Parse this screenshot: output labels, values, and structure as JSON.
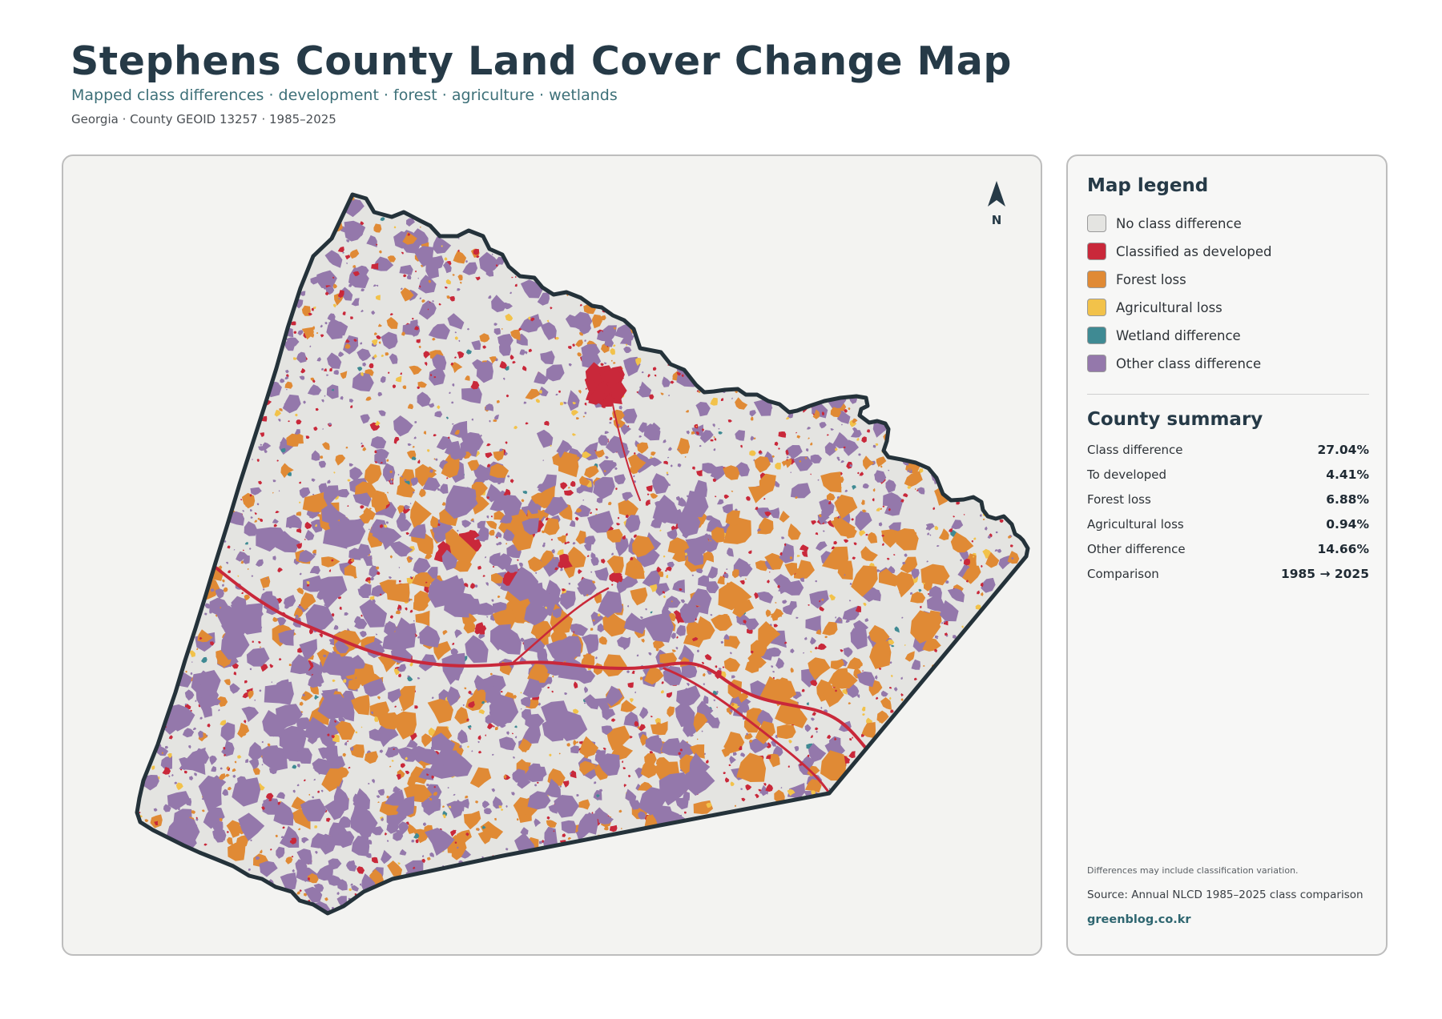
{
  "header": {
    "title": "Stephens County Land Cover Change Map",
    "subtitle": "Mapped class differences · development · forest · agriculture · wetlands",
    "meta": "Georgia · County GEOID 13257 · 1985–2025"
  },
  "map": {
    "north_label": "N",
    "boundary_color": "#24323a",
    "base_color": "#e4e4e1"
  },
  "legend": {
    "title": "Map legend",
    "items": [
      {
        "label": "No class difference",
        "color": "#e4e4e1"
      },
      {
        "label": "Classified as developed",
        "color": "#c9283a"
      },
      {
        "label": "Forest loss",
        "color": "#e08a35"
      },
      {
        "label": "Agricultural loss",
        "color": "#f2c24a"
      },
      {
        "label": "Wetland difference",
        "color": "#3f8a93"
      },
      {
        "label": "Other class difference",
        "color": "#9478ab"
      }
    ]
  },
  "summary": {
    "title": "County summary",
    "rows": [
      {
        "label": "Class difference",
        "value": "27.04%"
      },
      {
        "label": "To developed",
        "value": "4.41%"
      },
      {
        "label": "Forest loss",
        "value": "6.88%"
      },
      {
        "label": "Agricultural loss",
        "value": "0.94%"
      },
      {
        "label": "Other difference",
        "value": "14.66%"
      },
      {
        "label": "Comparison",
        "value": "1985 → 2025"
      }
    ]
  },
  "footer": {
    "note": "Differences may include classification variation.",
    "source": "Source: Annual NLCD 1985–2025 class comparison",
    "site": "greenblog.co.kr"
  }
}
